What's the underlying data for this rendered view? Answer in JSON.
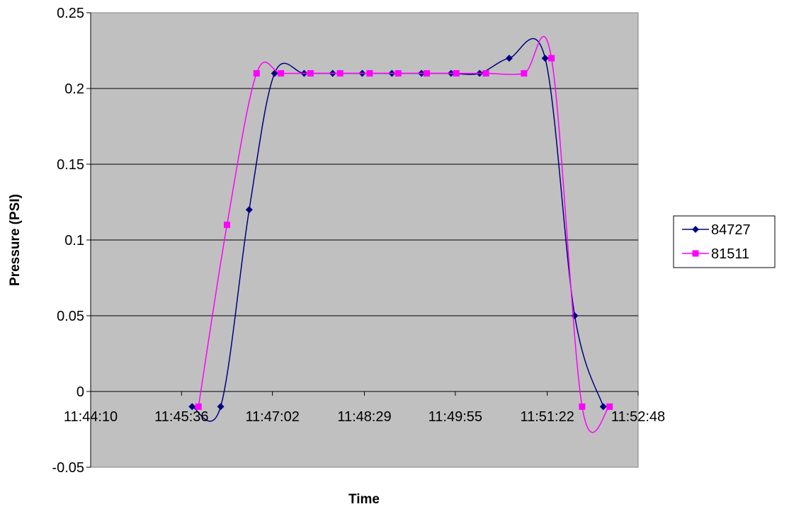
{
  "chart_data": {
    "type": "line",
    "title": "",
    "xlabel": "Time",
    "ylabel": "Pressure (PSI)",
    "x_unit": "time of day (hh:mm:ss)",
    "xlim": [
      "11:44:10",
      "11:52:48"
    ],
    "ylim": [
      -0.05,
      0.25
    ],
    "x_ticks": [
      "11:44:10",
      "11:45:36",
      "11:47:02",
      "11:48:29",
      "11:49:55",
      "11:51:22",
      "11:52:48"
    ],
    "y_ticks": [
      "-0.05",
      "0",
      "0.05",
      "0.1",
      "0.15",
      "0.2",
      "0.25"
    ],
    "grid": "horizontal major gridlines",
    "legend_position": "right",
    "plot_background": "#C0C0C0",
    "smoothed_lines": true,
    "series": [
      {
        "name": "84727",
        "color": "#000080",
        "marker": "diamond",
        "points": [
          {
            "x": "11:45:46",
            "y": -0.01
          },
          {
            "x": "11:46:13",
            "y": -0.01
          },
          {
            "x": "11:46:40",
            "y": 0.12
          },
          {
            "x": "11:47:04",
            "y": 0.21
          },
          {
            "x": "11:47:32",
            "y": 0.21
          },
          {
            "x": "11:47:59",
            "y": 0.21
          },
          {
            "x": "11:48:27",
            "y": 0.21
          },
          {
            "x": "11:48:55",
            "y": 0.21
          },
          {
            "x": "11:49:23",
            "y": 0.21
          },
          {
            "x": "11:49:51",
            "y": 0.21
          },
          {
            "x": "11:50:18",
            "y": 0.21
          },
          {
            "x": "11:50:46",
            "y": 0.22
          },
          {
            "x": "11:51:20",
            "y": 0.22
          },
          {
            "x": "11:51:48",
            "y": 0.05
          },
          {
            "x": "11:52:15",
            "y": -0.01
          }
        ]
      },
      {
        "name": "81511",
        "color": "#FF00FF",
        "marker": "square",
        "points": [
          {
            "x": "11:45:52",
            "y": -0.01
          },
          {
            "x": "11:46:19",
            "y": 0.11
          },
          {
            "x": "11:46:47",
            "y": 0.21
          },
          {
            "x": "11:47:10",
            "y": 0.21
          },
          {
            "x": "11:47:38",
            "y": 0.21
          },
          {
            "x": "11:48:06",
            "y": 0.21
          },
          {
            "x": "11:48:34",
            "y": 0.21
          },
          {
            "x": "11:49:01",
            "y": 0.21
          },
          {
            "x": "11:49:28",
            "y": 0.21
          },
          {
            "x": "11:49:56",
            "y": 0.21
          },
          {
            "x": "11:50:24",
            "y": 0.21
          },
          {
            "x": "11:51:00",
            "y": 0.21
          },
          {
            "x": "11:51:26",
            "y": 0.22
          },
          {
            "x": "11:51:55",
            "y": -0.01
          },
          {
            "x": "11:52:21",
            "y": -0.01
          }
        ]
      }
    ]
  }
}
